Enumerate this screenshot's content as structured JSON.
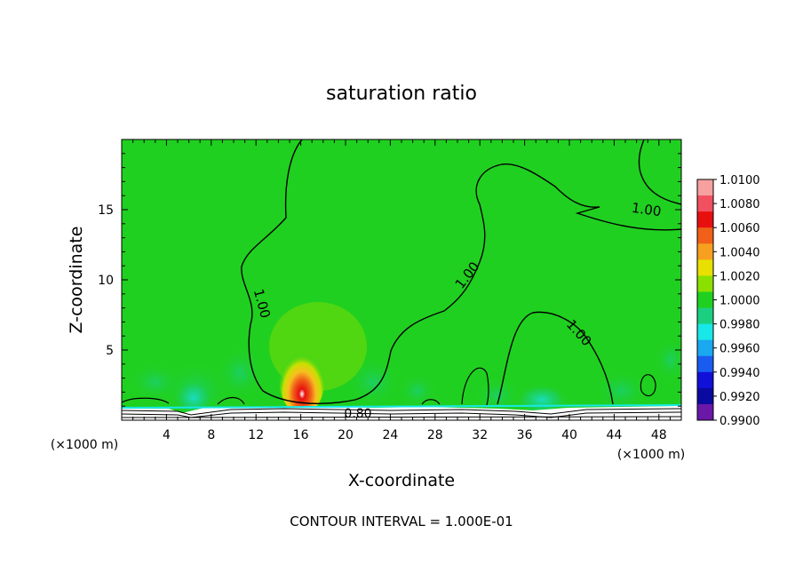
{
  "chart_data": {
    "type": "heatmap",
    "title": "saturation ratio",
    "xlabel": "X-coordinate",
    "ylabel": "Z-coordinate",
    "x_unit_left": "(×1000 m)",
    "x_unit_right": "(×1000 m)",
    "xlim": [
      0,
      50
    ],
    "ylim": [
      0,
      20
    ],
    "x_ticks": [
      4,
      8,
      12,
      16,
      20,
      24,
      28,
      32,
      36,
      40,
      44,
      48
    ],
    "y_ticks": [
      5,
      10,
      15
    ],
    "footer": "CONTOUR INTERVAL = 1.000E-01",
    "colorbar": {
      "labels": [
        "1.0100",
        "1.0080",
        "1.0060",
        "1.0040",
        "1.0020",
        "1.0000",
        "0.9980",
        "0.9960",
        "0.9940",
        "0.9920",
        "0.9900"
      ],
      "colors": [
        "#f7a0a0",
        "#f05060",
        "#e80f0f",
        "#f06018",
        "#f7a020",
        "#e8e000",
        "#8ce000",
        "#20d020",
        "#1ad080",
        "#18e8e8",
        "#1aa8f0",
        "#1a5cf0",
        "#1010d8",
        "#0a0aa0",
        "#6a18a8"
      ]
    },
    "contour_labels": [
      "1.00",
      "1.00",
      "1.00",
      "1.00",
      "0.80"
    ],
    "background_color": "#20d020"
  }
}
